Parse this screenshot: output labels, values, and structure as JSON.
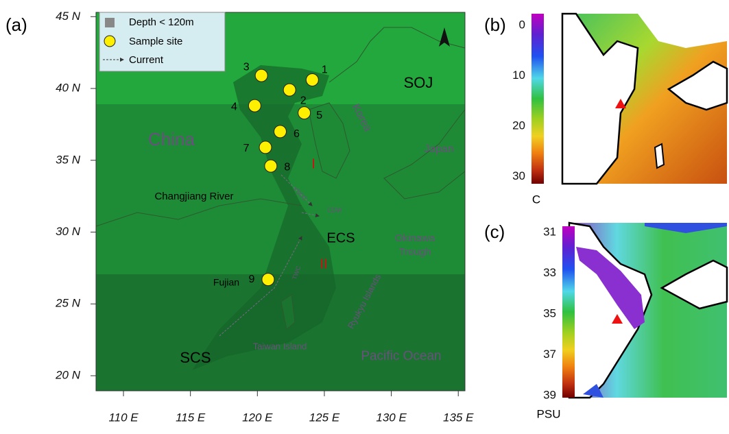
{
  "panel_a": {
    "label": "(a)",
    "xlim": [
      107.95,
      135.5
    ],
    "ylim": [
      18.95,
      45.3
    ],
    "xticks": [
      {
        "value": 110,
        "label": "110 E"
      },
      {
        "value": 115,
        "label": "115 E"
      },
      {
        "value": 120,
        "label": "120 E"
      },
      {
        "value": 125,
        "label": "125 E"
      },
      {
        "value": 130,
        "label": "130 E"
      },
      {
        "value": 135,
        "label": "135 E"
      }
    ],
    "yticks": [
      {
        "value": 20,
        "label": "20 N"
      },
      {
        "value": 25,
        "label": "25 N"
      },
      {
        "value": 30,
        "label": "30 N"
      },
      {
        "value": 35,
        "label": "35 N"
      },
      {
        "value": 40,
        "label": "40 N"
      },
      {
        "value": 45,
        "label": "45 N"
      }
    ],
    "legend": {
      "depth": "Depth < 120m",
      "site": "Sample site",
      "current": "Current"
    },
    "places": {
      "china": "China",
      "korea": "Korea",
      "japan": "Japan",
      "soj": "SOJ",
      "ecs": "ECS",
      "scs": "SCS",
      "pacific": "Pacific Ocean",
      "okinawa": [
        "Okinawa",
        "Trough"
      ],
      "taiwan": "Taiwan Island",
      "ryukyu": "Ryukyu Islands",
      "changjiang": "Changjiang River",
      "fujian": "Fujian",
      "zone1": "I",
      "zone2": "II",
      "cdw": "CDW",
      "yscc": "YSCC",
      "twc": "TWC"
    },
    "sites": [
      {
        "label": "1",
        "lon": 124.1,
        "lat": 40.6
      },
      {
        "label": "2",
        "lon": 122.4,
        "lat": 39.9
      },
      {
        "label": "3",
        "lon": 120.3,
        "lat": 40.9
      },
      {
        "label": "4",
        "lon": 119.8,
        "lat": 38.8
      },
      {
        "label": "5",
        "lon": 123.5,
        "lat": 38.3
      },
      {
        "label": "6",
        "lon": 121.7,
        "lat": 37.0
      },
      {
        "label": "7",
        "lon": 120.6,
        "lat": 35.9
      },
      {
        "label": "8",
        "lon": 121.0,
        "lat": 34.6
      },
      {
        "label": "9",
        "lon": 120.8,
        "lat": 26.7
      }
    ]
  },
  "panel_b": {
    "label": "(b)",
    "unit": "C",
    "range": [
      -2.3,
      31.4
    ],
    "ticks": [
      0,
      10,
      20,
      30
    ]
  },
  "panel_c": {
    "label": "(c)",
    "unit": "PSU",
    "range": [
      30.7,
      39.1
    ],
    "ticks": [
      31,
      33,
      35,
      37,
      39
    ]
  }
}
